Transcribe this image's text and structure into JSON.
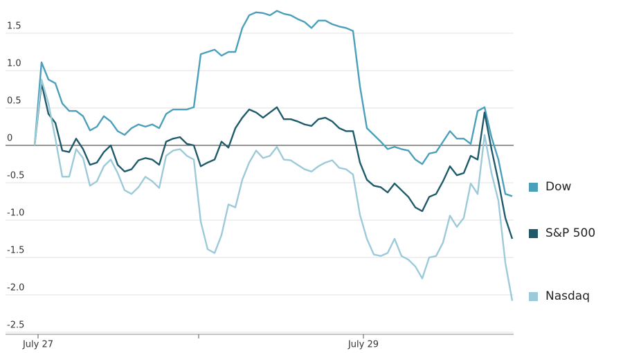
{
  "chart_data": {
    "type": "line",
    "categories": [
      "July 27",
      null,
      null,
      null,
      null,
      null,
      null,
      null,
      null,
      null,
      null,
      null,
      null,
      null,
      null,
      null,
      null,
      null,
      null,
      null,
      null,
      null,
      null,
      null,
      null,
      null,
      null,
      null,
      null,
      null,
      null,
      null,
      null,
      null,
      null,
      null,
      null,
      null,
      null,
      null,
      null,
      null,
      null,
      null,
      null,
      null,
      null,
      "July 29",
      null,
      null,
      null,
      null,
      null,
      null,
      null,
      null,
      null,
      null,
      null,
      null,
      null,
      null,
      null,
      null,
      null,
      null,
      null,
      null,
      null,
      null
    ],
    "series": [
      {
        "name": "Dow",
        "color": "#4a9fbb",
        "values": [
          0,
          1.11,
          0.88,
          0.83,
          0.56,
          0.46,
          0.46,
          0.39,
          0.2,
          0.25,
          0.39,
          0.32,
          0.19,
          0.14,
          0.23,
          0.28,
          0.25,
          0.28,
          0.23,
          0.42,
          0.48,
          0.48,
          0.48,
          0.51,
          1.22,
          1.25,
          1.28,
          1.2,
          1.25,
          1.25,
          1.57,
          1.74,
          1.78,
          1.77,
          1.74,
          1.8,
          1.76,
          1.74,
          1.69,
          1.65,
          1.57,
          1.67,
          1.67,
          1.62,
          1.59,
          1.57,
          1.53,
          0.79,
          0.23,
          0.14,
          0.05,
          -0.05,
          -0.02,
          -0.05,
          -0.07,
          -0.19,
          -0.25,
          -0.11,
          -0.09,
          0.05,
          0.19,
          0.09,
          0.09,
          0.02,
          0.46,
          0.51,
          0.11,
          -0.19,
          -0.65,
          -0.68
        ]
      },
      {
        "name": "S&P 500",
        "color": "#1f5a6a",
        "values": [
          0,
          0.83,
          0.42,
          0.3,
          -0.07,
          -0.09,
          0.09,
          -0.05,
          -0.26,
          -0.23,
          -0.09,
          0,
          -0.26,
          -0.35,
          -0.32,
          -0.2,
          -0.17,
          -0.19,
          -0.26,
          0.05,
          0.09,
          0.11,
          0.02,
          0,
          -0.28,
          -0.23,
          -0.19,
          0.05,
          -0.03,
          0.23,
          0.37,
          0.48,
          0.44,
          0.37,
          0.44,
          0.51,
          0.35,
          0.35,
          0.32,
          0.28,
          0.26,
          0.35,
          0.37,
          0.32,
          0.23,
          0.19,
          0.19,
          -0.23,
          -0.46,
          -0.54,
          -0.56,
          -0.63,
          -0.51,
          -0.6,
          -0.69,
          -0.83,
          -0.88,
          -0.69,
          -0.65,
          -0.48,
          -0.28,
          -0.4,
          -0.37,
          -0.14,
          -0.19,
          0.44,
          -0.05,
          -0.48,
          -0.97,
          -1.25
        ]
      },
      {
        "name": "Nasdaq",
        "color": "#9ccad8",
        "values": [
          0,
          0.88,
          0.56,
          0.09,
          -0.42,
          -0.42,
          -0.05,
          -0.17,
          -0.54,
          -0.48,
          -0.28,
          -0.19,
          -0.37,
          -0.6,
          -0.65,
          -0.56,
          -0.42,
          -0.48,
          -0.57,
          -0.14,
          -0.07,
          -0.05,
          -0.14,
          -0.19,
          -1.02,
          -1.39,
          -1.44,
          -1.2,
          -0.79,
          -0.83,
          -0.46,
          -0.23,
          -0.07,
          -0.17,
          -0.14,
          -0.02,
          -0.19,
          -0.2,
          -0.26,
          -0.32,
          -0.35,
          -0.28,
          -0.23,
          -0.2,
          -0.3,
          -0.32,
          -0.39,
          -0.93,
          -1.25,
          -1.46,
          -1.48,
          -1.44,
          -1.25,
          -1.48,
          -1.53,
          -1.62,
          -1.78,
          -1.5,
          -1.48,
          -1.3,
          -0.94,
          -1.09,
          -0.97,
          -0.51,
          -0.65,
          0.14,
          -0.37,
          -0.74,
          -1.57,
          -2.08
        ]
      }
    ],
    "ylim": [
      -2.5,
      1.75
    ],
    "yticks": [
      {
        "value": 1.5,
        "label": "1.5"
      },
      {
        "value": 1,
        "label": "1.0"
      },
      0.5,
      0,
      -0.5,
      {
        "value": -1,
        "label": "-1.0"
      },
      -1.5,
      {
        "value": -2,
        "label": "-2.0"
      },
      -2.5
    ],
    "grid": true
  }
}
